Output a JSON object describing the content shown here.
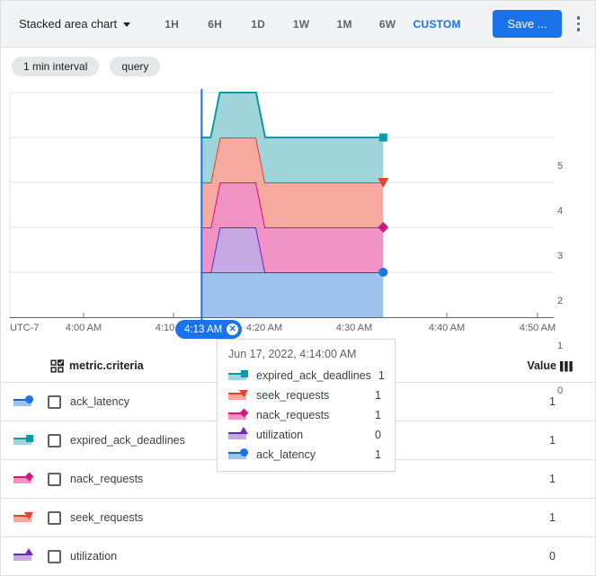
{
  "toolbar": {
    "chart_type_label": "Stacked area chart",
    "time_ranges": [
      "1H",
      "6H",
      "1D",
      "1W",
      "1M",
      "6W",
      "CUSTOM"
    ],
    "active_range": "CUSTOM",
    "save_label": "Save ...",
    "accent_color": "#1a73e8"
  },
  "chips": [
    "1 min interval",
    "query"
  ],
  "chart_data": {
    "type": "area",
    "stacked": true,
    "x_axis": {
      "timezone_label": "UTC-7",
      "ticks": [
        "4:00 AM",
        "4:10 AM",
        "4:20 AM",
        "4:30 AM",
        "4:40 AM",
        "4:50 AM"
      ]
    },
    "y_axis": {
      "position": "right",
      "ticks": [
        0,
        1,
        2,
        3,
        4,
        5
      ],
      "ylim": [
        0,
        5
      ],
      "grid": true
    },
    "selected_time": {
      "label": "4:13 AM",
      "minutes_after_4am": 13,
      "line_color": "#1a73e8"
    },
    "times_min": [
      13,
      14,
      15,
      19,
      20,
      33
    ],
    "series": [
      {
        "name": "ack_latency",
        "values": [
          1,
          1,
          1,
          1,
          1,
          1
        ],
        "fill": "#9dc2ec",
        "stroke": "#1765c1",
        "marker": "circle",
        "marker_color": "#1a73e8"
      },
      {
        "name": "utilization",
        "values": [
          0,
          0,
          1,
          1,
          0,
          0
        ],
        "fill": "#c6a9e2",
        "stroke": "#5e2bbd",
        "marker": "triangle-up",
        "marker_color": "#7627bb"
      },
      {
        "name": "nack_requests",
        "values": [
          1,
          1,
          1,
          1,
          1,
          1
        ],
        "fill": "#f192c5",
        "stroke": "#e0107c",
        "marker": "diamond",
        "marker_color": "#d01884"
      },
      {
        "name": "seek_requests",
        "values": [
          1,
          1,
          1,
          1,
          1,
          1
        ],
        "fill": "#f6a99f",
        "stroke": "#e8412c",
        "marker": "triangle-down",
        "marker_color": "#e8412c"
      },
      {
        "name": "expired_ack_deadlines",
        "values": [
          1,
          1,
          1,
          1,
          1,
          1
        ],
        "fill": "#9fd5da",
        "stroke": "#0d9aa8",
        "marker": "square",
        "marker_color": "#0d9aa8"
      }
    ]
  },
  "tooltip": {
    "title": "Jun 17, 2022, 4:14:00 AM",
    "rows": [
      {
        "name": "expired_ack_deadlines",
        "value": "1"
      },
      {
        "name": "seek_requests",
        "value": "1"
      },
      {
        "name": "nack_requests",
        "value": "1"
      },
      {
        "name": "utilization",
        "value": "0"
      },
      {
        "name": "ack_latency",
        "value": "1"
      }
    ]
  },
  "table": {
    "header": {
      "left": "metric.criteria",
      "right": "Value"
    },
    "rows": [
      {
        "name": "ack_latency",
        "value": "1"
      },
      {
        "name": "expired_ack_deadlines",
        "value": "1"
      },
      {
        "name": "nack_requests",
        "value": "1"
      },
      {
        "name": "seek_requests",
        "value": "1"
      },
      {
        "name": "utilization",
        "value": "0"
      }
    ]
  }
}
